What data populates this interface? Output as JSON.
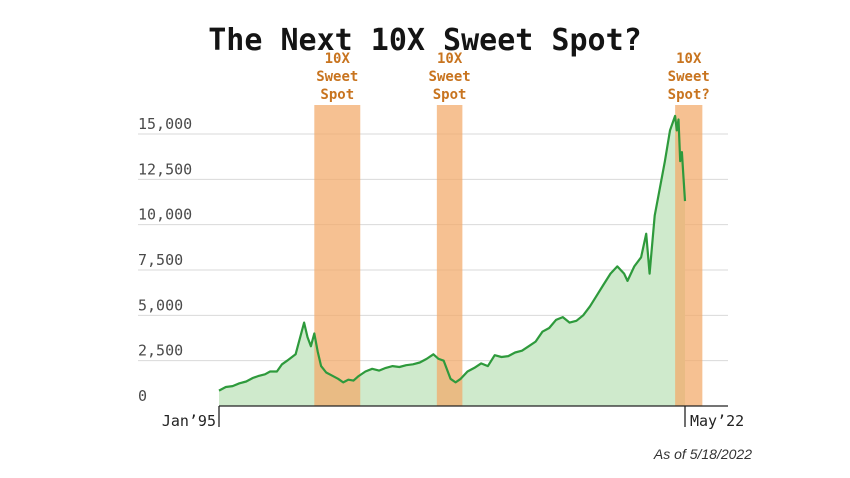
{
  "chart_data": {
    "type": "area",
    "title": "The Next 10X Sweet Spot?",
    "footnote": "As of 5/18/2022",
    "xlabel": "",
    "ylabel": "",
    "ylim": [
      0,
      15000
    ],
    "xlim": [
      1995.0,
      2022.38
    ],
    "yticks": [
      0,
      2500,
      5000,
      7500,
      10000,
      12500,
      15000
    ],
    "ytick_labels": [
      "0",
      "2,500",
      "5,000",
      "7,500",
      "10,000",
      "12,500",
      "15,000"
    ],
    "xtick_labels": [
      "Jan’95",
      "May’22"
    ],
    "grid": true,
    "colors": {
      "line": "#2e9a3c",
      "fill": "#cfeacc",
      "band": "#f2a968",
      "annotation": "#c8741f",
      "grid": "#d9d9d9"
    },
    "shaded_regions": [
      {
        "label": [
          "10X",
          "Sweet",
          "Spot"
        ],
        "x_start": 2000.6,
        "x_end": 2003.3
      },
      {
        "label": [
          "10X",
          "Sweet",
          "Spot"
        ],
        "x_start": 2007.8,
        "x_end": 2009.3
      },
      {
        "label": [
          "10X",
          "Sweet",
          "Spot?"
        ],
        "x_start": 2021.8,
        "x_end": 2023.4
      }
    ],
    "series": [
      {
        "x": [
          1995.0,
          1995.4,
          1995.8,
          1996.2,
          1996.6,
          1997.0,
          1997.3,
          1997.7,
          1998.0,
          1998.4,
          1998.7,
          1999.0,
          1999.5,
          2000.0,
          2000.2,
          2000.4,
          2000.6,
          2000.8,
          2001.0,
          2001.3,
          2001.6,
          2002.0,
          2002.3,
          2002.6,
          2002.9,
          2003.2,
          2003.6,
          2004.0,
          2004.4,
          2004.8,
          2005.2,
          2005.6,
          2006.0,
          2006.4,
          2006.8,
          2007.2,
          2007.6,
          2007.9,
          2008.2,
          2008.6,
          2008.9,
          2009.2,
          2009.6,
          2010.0,
          2010.4,
          2010.8,
          2011.2,
          2011.6,
          2012.0,
          2012.4,
          2012.8,
          2013.2,
          2013.6,
          2014.0,
          2014.4,
          2014.8,
          2015.2,
          2015.6,
          2016.0,
          2016.4,
          2016.8,
          2017.2,
          2017.6,
          2018.0,
          2018.4,
          2018.8,
          2019.0,
          2019.4,
          2019.8,
          2020.1,
          2020.3,
          2020.6,
          2020.9,
          2021.2,
          2021.5,
          2021.8,
          2021.9,
          2022.0,
          2022.1,
          2022.2,
          2022.3,
          2022.38
        ],
        "values": [
          850,
          1050,
          1100,
          1250,
          1350,
          1550,
          1650,
          1750,
          1900,
          1900,
          2300,
          2500,
          2850,
          4600,
          3800,
          3300,
          4000,
          3000,
          2200,
          1850,
          1700,
          1500,
          1300,
          1450,
          1400,
          1650,
          1900,
          2050,
          1950,
          2100,
          2200,
          2150,
          2250,
          2300,
          2400,
          2600,
          2850,
          2600,
          2500,
          1500,
          1300,
          1500,
          1900,
          2100,
          2350,
          2200,
          2800,
          2700,
          2750,
          2950,
          3050,
          3300,
          3550,
          4100,
          4300,
          4750,
          4900,
          4600,
          4700,
          5000,
          5500,
          6100,
          6700,
          7300,
          7700,
          7300,
          6900,
          7700,
          8200,
          9500,
          7300,
          10500,
          12000,
          13500,
          15200,
          16000,
          15200,
          15800,
          13500,
          14000,
          12500,
          11300
        ]
      }
    ]
  }
}
